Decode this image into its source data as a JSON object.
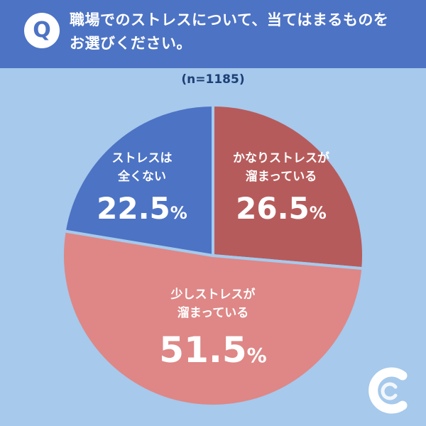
{
  "header": {
    "badge": "Q",
    "question_line1": "職場でのストレスについて、当てはまるものを",
    "question_line2": "お選びください。"
  },
  "colors": {
    "background": "#a6c9ec",
    "header": "#4d73c4",
    "slice_colors": [
      "#4d73c4",
      "#b65b5b",
      "#de8786"
    ]
  },
  "chart_data": {
    "type": "pie",
    "note": "(n=1185)",
    "slices": [
      {
        "line1": "ストレスは",
        "line2": "全くない",
        "value": 22.5,
        "color": "#4d73c4"
      },
      {
        "line1": "かなりストレスが",
        "line2": "溜まっている",
        "value": 26.5,
        "color": "#b65b5b"
      },
      {
        "line1": "少しストレスが",
        "line2": "溜まっている",
        "value": 51.5,
        "color": "#de8786"
      }
    ],
    "unit": "%"
  },
  "logo": {
    "icon": "brand-c-logo-icon"
  }
}
